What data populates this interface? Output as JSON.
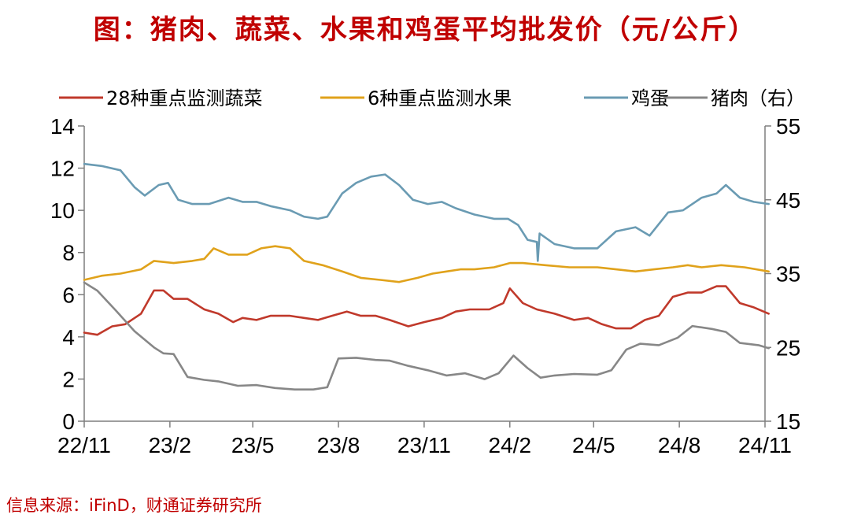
{
  "title": "图：猪肉、蔬菜、水果和鸡蛋平均批发价（元/公斤）",
  "source": "信息来源：iFinD，财通证券研究所",
  "chart_data": {
    "type": "line",
    "x_labels": [
      "22/11",
      "23/2",
      "23/5",
      "23/8",
      "23/11",
      "24/2",
      "24/5",
      "24/8",
      "24/11"
    ],
    "x_dates": [
      "2022-11",
      "2023-02",
      "2023-05",
      "2023-08",
      "2023-11",
      "2024-02",
      "2024-05",
      "2024-08",
      "2024-11"
    ],
    "y_left": {
      "range": [
        0,
        14
      ],
      "ticks": [
        "0",
        "2",
        "4",
        "6",
        "8",
        "10",
        "12",
        "14"
      ]
    },
    "y_right": {
      "range": [
        15,
        55
      ],
      "ticks": [
        "15",
        "25",
        "35",
        "45",
        "55"
      ]
    },
    "grid": false,
    "legend_position": "top",
    "series": [
      {
        "name": "28种重点监测蔬菜",
        "axis": "left",
        "color": "#c0392b",
        "points": [
          [
            "2022-11-01",
            4.2
          ],
          [
            "2022-11-15",
            4.1
          ],
          [
            "2022-12-01",
            4.5
          ],
          [
            "2022-12-15",
            4.6
          ],
          [
            "2023-01-01",
            5.1
          ],
          [
            "2023-01-15",
            6.2
          ],
          [
            "2023-01-25",
            6.2
          ],
          [
            "2023-02-05",
            5.8
          ],
          [
            "2023-02-20",
            5.8
          ],
          [
            "2023-03-10",
            5.3
          ],
          [
            "2023-03-25",
            5.1
          ],
          [
            "2023-04-10",
            4.7
          ],
          [
            "2023-04-20",
            4.9
          ],
          [
            "2023-05-05",
            4.8
          ],
          [
            "2023-05-20",
            5.0
          ],
          [
            "2023-06-10",
            5.0
          ],
          [
            "2023-06-25",
            4.9
          ],
          [
            "2023-07-10",
            4.8
          ],
          [
            "2023-07-25",
            5.0
          ],
          [
            "2023-08-10",
            5.2
          ],
          [
            "2023-08-25",
            5.0
          ],
          [
            "2023-09-10",
            5.0
          ],
          [
            "2023-09-25",
            4.8
          ],
          [
            "2023-10-15",
            4.5
          ],
          [
            "2023-11-01",
            4.7
          ],
          [
            "2023-11-20",
            4.9
          ],
          [
            "2023-12-05",
            5.2
          ],
          [
            "2023-12-20",
            5.3
          ],
          [
            "2024-01-10",
            5.3
          ],
          [
            "2024-01-25",
            5.6
          ],
          [
            "2024-02-01",
            6.3
          ],
          [
            "2024-02-15",
            5.6
          ],
          [
            "2024-03-01",
            5.3
          ],
          [
            "2024-03-20",
            5.1
          ],
          [
            "2024-04-10",
            4.8
          ],
          [
            "2024-04-25",
            4.9
          ],
          [
            "2024-05-10",
            4.6
          ],
          [
            "2024-05-25",
            4.4
          ],
          [
            "2024-06-10",
            4.4
          ],
          [
            "2024-06-25",
            4.8
          ],
          [
            "2024-07-10",
            5.0
          ],
          [
            "2024-07-25",
            5.9
          ],
          [
            "2024-08-10",
            6.1
          ],
          [
            "2024-08-25",
            6.1
          ],
          [
            "2024-09-10",
            6.4
          ],
          [
            "2024-09-20",
            6.4
          ],
          [
            "2024-10-05",
            5.6
          ],
          [
            "2024-10-20",
            5.4
          ],
          [
            "2024-11-05",
            5.1
          ]
        ]
      },
      {
        "name": "6种重点监测水果",
        "axis": "left",
        "color": "#e0a21b",
        "points": [
          [
            "2022-11-01",
            6.7
          ],
          [
            "2022-11-20",
            6.9
          ],
          [
            "2022-12-10",
            7.0
          ],
          [
            "2023-01-01",
            7.2
          ],
          [
            "2023-01-15",
            7.6
          ],
          [
            "2023-02-05",
            7.5
          ],
          [
            "2023-02-25",
            7.6
          ],
          [
            "2023-03-10",
            7.7
          ],
          [
            "2023-03-20",
            8.2
          ],
          [
            "2023-04-05",
            7.9
          ],
          [
            "2023-04-25",
            7.9
          ],
          [
            "2023-05-10",
            8.2
          ],
          [
            "2023-05-25",
            8.3
          ],
          [
            "2023-06-10",
            8.2
          ],
          [
            "2023-06-25",
            7.6
          ],
          [
            "2023-07-15",
            7.4
          ],
          [
            "2023-08-05",
            7.1
          ],
          [
            "2023-08-25",
            6.8
          ],
          [
            "2023-09-15",
            6.7
          ],
          [
            "2023-10-05",
            6.6
          ],
          [
            "2023-10-25",
            6.8
          ],
          [
            "2023-11-10",
            7.0
          ],
          [
            "2023-11-25",
            7.1
          ],
          [
            "2023-12-10",
            7.2
          ],
          [
            "2023-12-25",
            7.2
          ],
          [
            "2024-01-15",
            7.3
          ],
          [
            "2024-02-01",
            7.5
          ],
          [
            "2024-02-15",
            7.5
          ],
          [
            "2024-03-10",
            7.4
          ],
          [
            "2024-04-05",
            7.3
          ],
          [
            "2024-05-05",
            7.3
          ],
          [
            "2024-05-25",
            7.2
          ],
          [
            "2024-06-15",
            7.1
          ],
          [
            "2024-07-05",
            7.2
          ],
          [
            "2024-07-25",
            7.3
          ],
          [
            "2024-08-10",
            7.4
          ],
          [
            "2024-08-25",
            7.3
          ],
          [
            "2024-09-15",
            7.4
          ],
          [
            "2024-10-10",
            7.3
          ],
          [
            "2024-11-05",
            7.1
          ]
        ]
      },
      {
        "name": "鸡蛋",
        "axis": "left",
        "color": "#6a9bb3",
        "points": [
          [
            "2022-11-01",
            12.2
          ],
          [
            "2022-11-20",
            12.1
          ],
          [
            "2022-12-10",
            11.9
          ],
          [
            "2022-12-25",
            11.1
          ],
          [
            "2023-01-05",
            10.7
          ],
          [
            "2023-01-20",
            11.2
          ],
          [
            "2023-01-30",
            11.3
          ],
          [
            "2023-02-10",
            10.5
          ],
          [
            "2023-02-25",
            10.3
          ],
          [
            "2023-03-15",
            10.3
          ],
          [
            "2023-04-05",
            10.6
          ],
          [
            "2023-04-20",
            10.4
          ],
          [
            "2023-05-05",
            10.4
          ],
          [
            "2023-05-20",
            10.2
          ],
          [
            "2023-06-10",
            10.0
          ],
          [
            "2023-06-25",
            9.7
          ],
          [
            "2023-07-10",
            9.6
          ],
          [
            "2023-07-20",
            9.7
          ],
          [
            "2023-08-05",
            10.8
          ],
          [
            "2023-08-20",
            11.3
          ],
          [
            "2023-09-05",
            11.6
          ],
          [
            "2023-09-20",
            11.7
          ],
          [
            "2023-10-05",
            11.2
          ],
          [
            "2023-10-20",
            10.5
          ],
          [
            "2023-11-05",
            10.3
          ],
          [
            "2023-11-20",
            10.4
          ],
          [
            "2023-12-05",
            10.1
          ],
          [
            "2023-12-25",
            9.8
          ],
          [
            "2024-01-15",
            9.6
          ],
          [
            "2024-01-30",
            9.6
          ],
          [
            "2024-02-10",
            9.3
          ],
          [
            "2024-02-20",
            8.6
          ],
          [
            "2024-03-01",
            8.5
          ],
          [
            "2024-03-02",
            7.6
          ],
          [
            "2024-03-04",
            8.9
          ],
          [
            "2024-03-20",
            8.4
          ],
          [
            "2024-04-10",
            8.2
          ],
          [
            "2024-05-05",
            8.2
          ],
          [
            "2024-05-25",
            9.0
          ],
          [
            "2024-06-15",
            9.2
          ],
          [
            "2024-06-30",
            8.8
          ],
          [
            "2024-07-20",
            9.9
          ],
          [
            "2024-08-05",
            10.0
          ],
          [
            "2024-08-25",
            10.6
          ],
          [
            "2024-09-10",
            10.8
          ],
          [
            "2024-09-20",
            11.2
          ],
          [
            "2024-10-05",
            10.6
          ],
          [
            "2024-10-20",
            10.4
          ],
          [
            "2024-11-05",
            10.3
          ]
        ]
      },
      {
        "name": "猪肉（右）",
        "axis": "right",
        "color": "#878787",
        "points": [
          [
            "2022-11-01",
            33.8
          ],
          [
            "2022-11-15",
            32.7
          ],
          [
            "2022-12-05",
            30.0
          ],
          [
            "2022-12-25",
            27.2
          ],
          [
            "2023-01-15",
            25.0
          ],
          [
            "2023-01-25",
            24.2
          ],
          [
            "2023-02-05",
            24.1
          ],
          [
            "2023-02-20",
            21.0
          ],
          [
            "2023-03-10",
            20.6
          ],
          [
            "2023-03-25",
            20.4
          ],
          [
            "2023-04-15",
            19.8
          ],
          [
            "2023-05-05",
            19.9
          ],
          [
            "2023-05-25",
            19.5
          ],
          [
            "2023-06-15",
            19.3
          ],
          [
            "2023-07-05",
            19.3
          ],
          [
            "2023-07-20",
            19.6
          ],
          [
            "2023-08-01",
            23.5
          ],
          [
            "2023-08-20",
            23.6
          ],
          [
            "2023-09-10",
            23.3
          ],
          [
            "2023-09-25",
            23.2
          ],
          [
            "2023-10-15",
            22.5
          ],
          [
            "2023-11-05",
            21.9
          ],
          [
            "2023-11-25",
            21.2
          ],
          [
            "2023-12-15",
            21.5
          ],
          [
            "2024-01-05",
            20.7
          ],
          [
            "2024-01-20",
            21.5
          ],
          [
            "2024-02-05",
            23.9
          ],
          [
            "2024-02-20",
            22.2
          ],
          [
            "2024-03-05",
            20.9
          ],
          [
            "2024-03-20",
            21.2
          ],
          [
            "2024-04-10",
            21.4
          ],
          [
            "2024-05-05",
            21.3
          ],
          [
            "2024-05-20",
            21.9
          ],
          [
            "2024-06-05",
            24.7
          ],
          [
            "2024-06-20",
            25.5
          ],
          [
            "2024-07-10",
            25.3
          ],
          [
            "2024-07-30",
            26.3
          ],
          [
            "2024-08-15",
            27.9
          ],
          [
            "2024-09-05",
            27.5
          ],
          [
            "2024-09-20",
            27.1
          ],
          [
            "2024-10-05",
            25.6
          ],
          [
            "2024-10-25",
            25.3
          ],
          [
            "2024-11-05",
            24.9
          ]
        ]
      }
    ]
  }
}
